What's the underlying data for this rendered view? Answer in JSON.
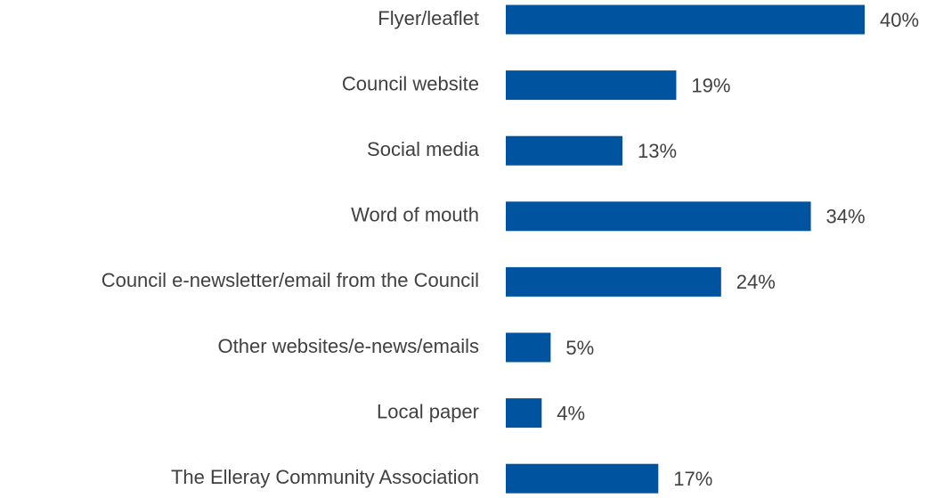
{
  "chart_data": {
    "type": "bar",
    "orientation": "horizontal",
    "categories": [
      "Flyer/leaflet",
      "Council website",
      "Social media",
      "Word of mouth",
      "Council e-newsletter/email from the Council",
      "Other websites/e-news/emails",
      "Local paper",
      "The Elleray Community Association"
    ],
    "values": [
      40,
      19,
      13,
      34,
      24,
      5,
      4,
      17
    ],
    "value_labels": [
      "40%",
      "19%",
      "13%",
      "34%",
      "24%",
      "5%",
      "4%",
      "17%"
    ],
    "color": "#00539f"
  }
}
